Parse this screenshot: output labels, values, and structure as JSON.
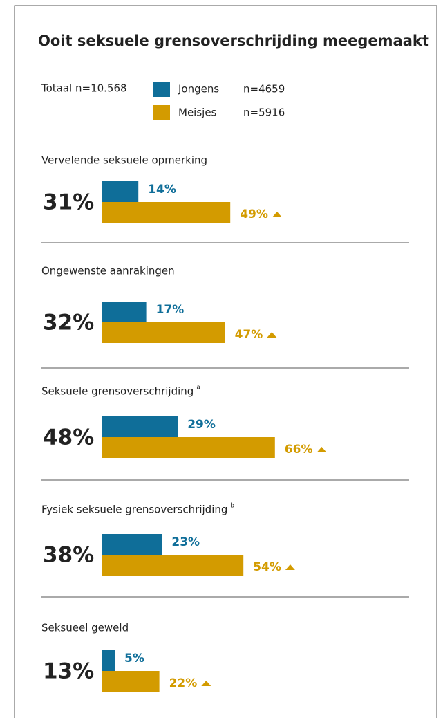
{
  "chart_data": {
    "type": "bar",
    "title": "Ooit seksuele grensoverschrijding meegemaakt",
    "total_label": "Totaal n=10.568",
    "categories": [
      "Vervelende seksuele opmerking",
      "Ongewenste aanrakingen",
      "Seksuele grensoverschrijding",
      "Fysiek seksuele grensoverschrijding",
      "Seksueel geweld"
    ],
    "category_notes": [
      null,
      null,
      "a",
      "b",
      null
    ],
    "totals": [
      31,
      32,
      48,
      38,
      13
    ],
    "total_value_labels": [
      "31%",
      "32%",
      "48%",
      "38%",
      "13%"
    ],
    "series": [
      {
        "name": "Jongens",
        "n_label": "n=4659",
        "color": "#0f6e99",
        "values": [
          14,
          17,
          29,
          23,
          5
        ],
        "value_labels": [
          "14%",
          "17%",
          "29%",
          "23%",
          "5%"
        ]
      },
      {
        "name": "Meisjes",
        "n_label": "n=5916",
        "color": "#d39b00",
        "values": [
          49,
          47,
          66,
          54,
          22
        ],
        "value_labels": [
          "49%",
          "47%",
          "66%",
          "54%",
          "22%"
        ]
      }
    ]
  }
}
